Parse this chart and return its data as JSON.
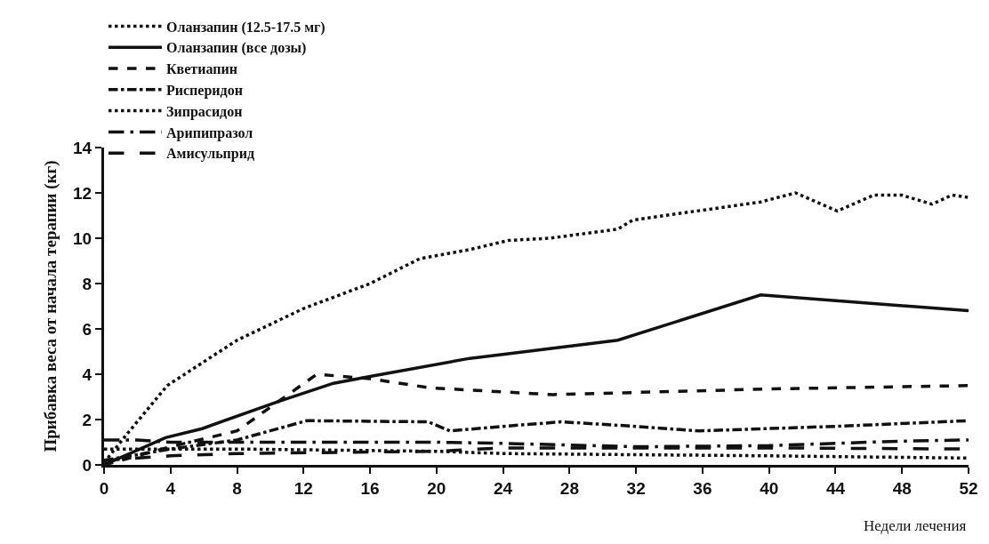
{
  "chart_data": {
    "type": "line",
    "xlabel": "Недели лечения",
    "ylabel": "Прибавка веса от начала терапии (кг)",
    "xlim": [
      0,
      52
    ],
    "xticks": [
      0,
      4,
      8,
      12,
      16,
      20,
      24,
      28,
      32,
      36,
      40,
      44,
      48,
      52
    ],
    "ylim": [
      0,
      14
    ],
    "yticks": [
      0,
      2,
      4,
      6,
      8,
      10,
      12,
      14
    ],
    "legend": "top left",
    "marker": "none",
    "series": [
      {
        "name": "Оланзапин (12.5-17.5 мг)",
        "color": "#111111",
        "line_style": "dotted",
        "x": [
          0,
          1.2,
          3.8,
          8,
          12,
          16,
          19,
          22,
          24.3,
          26.8,
          30.9,
          31.8,
          39.5,
          41.6,
          44.1,
          46.3,
          48,
          49.8,
          51,
          52
        ],
        "values": [
          0.1,
          1.2,
          3.5,
          5.5,
          6.9,
          8.0,
          9.1,
          9.5,
          9.9,
          10.0,
          10.4,
          10.8,
          11.6,
          12.0,
          11.2,
          11.9,
          11.9,
          11.5,
          11.9,
          11.8
        ]
      },
      {
        "name": "Оланзапин (все дозы)",
        "color": "#111111",
        "line_style": "solid",
        "x": [
          0,
          3.7,
          5.9,
          10.5,
          13.8,
          16,
          22,
          24.3,
          30.9,
          39.5,
          52
        ],
        "values": [
          0,
          1.2,
          1.6,
          2.8,
          3.6,
          3.9,
          4.7,
          4.9,
          5.5,
          7.5,
          6.8
        ]
      },
      {
        "name": "Кветиапин",
        "color": "#111111",
        "line_style": "dashed",
        "x": [
          0,
          4,
          8,
          12.8,
          16,
          19.6,
          25.7,
          27,
          40,
          52
        ],
        "values": [
          0,
          0.8,
          1.5,
          4.0,
          3.8,
          3.4,
          3.15,
          3.1,
          3.35,
          3.5
        ]
      },
      {
        "name": "Рисперидон",
        "color": "#111111",
        "line_style": "dashdot",
        "x": [
          0,
          4,
          8,
          12.2,
          19.5,
          20.8,
          24,
          27.5,
          32,
          35.8,
          44,
          52
        ],
        "values": [
          0.2,
          0.7,
          1.1,
          1.95,
          1.9,
          1.5,
          1.7,
          1.9,
          1.7,
          1.5,
          1.7,
          1.95
        ]
      },
      {
        "name": "Зипрасидон",
        "color": "#111111",
        "line_style": "dotted",
        "x": [
          0,
          8,
          20,
          24,
          40,
          52
        ],
        "values": [
          0.7,
          0.7,
          0.6,
          0.5,
          0.4,
          0.3
        ]
      },
      {
        "name": "Арипипразол",
        "color": "#111111",
        "line_style": "longdashdot",
        "x": [
          0,
          2,
          4,
          20,
          24,
          32,
          40,
          48,
          52
        ],
        "values": [
          1.1,
          1.1,
          1.0,
          1.0,
          0.95,
          0.8,
          0.85,
          1.05,
          1.1
        ]
      },
      {
        "name": "Амисульприд",
        "color": "#111111",
        "line_style": "longdash",
        "x": [
          0,
          4,
          8,
          20,
          24,
          40,
          52
        ],
        "values": [
          0.2,
          0.4,
          0.5,
          0.6,
          0.75,
          0.75,
          0.7
        ]
      }
    ]
  }
}
